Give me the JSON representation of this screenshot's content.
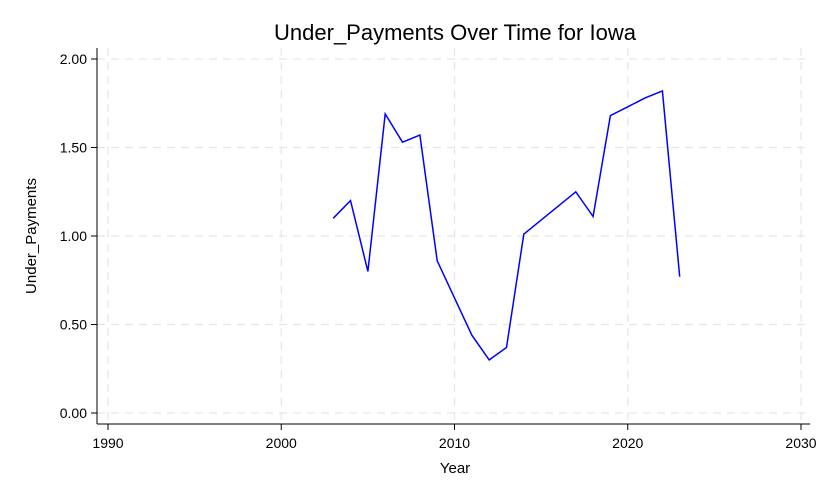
{
  "chart_data": {
    "type": "line",
    "title": "Under_Payments Over Time for Iowa",
    "xlabel": "Year",
    "ylabel": "Under_Payments",
    "xlim": [
      1990,
      2030
    ],
    "ylim": [
      0,
      2
    ],
    "x_ticks": [
      1990,
      2000,
      2010,
      2020,
      2030
    ],
    "y_ticks": [
      "0.00",
      "0.50",
      "1.00",
      "1.50",
      "2.00"
    ],
    "grid": true,
    "series": [
      {
        "color": "#0000ff",
        "x": [
          2003,
          2004,
          2005,
          2006,
          2007,
          2008,
          2009,
          2010,
          2011,
          2012,
          2013,
          2014,
          2015,
          2016,
          2017,
          2018,
          2019,
          2020,
          2021,
          2022,
          2023
        ],
        "y": [
          1.1,
          1.2,
          0.8,
          1.69,
          1.53,
          1.57,
          0.86,
          0.65,
          0.44,
          0.3,
          0.37,
          1.01,
          1.09,
          1.17,
          1.25,
          1.11,
          1.68,
          1.73,
          1.78,
          1.82,
          0.77
        ]
      }
    ]
  }
}
